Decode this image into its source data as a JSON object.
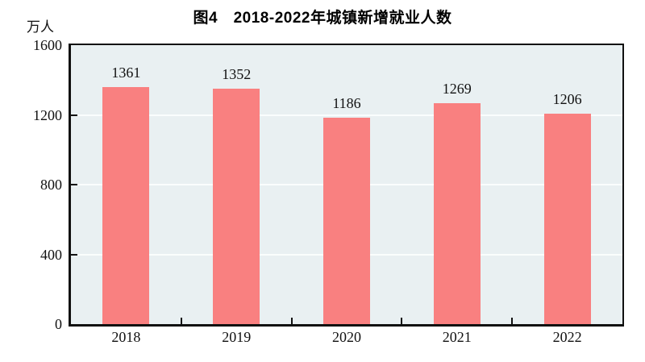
{
  "title": "图4　2018-2022年城镇新增就业人数",
  "unit_label": "万人",
  "colors": {
    "bar": "#f98080",
    "plot_background": "#e9f0f2",
    "gridline": "#fafdfd",
    "axis": "#111111",
    "text": "#111111",
    "page_background": "#ffffff"
  },
  "chart_data": {
    "type": "bar",
    "title": "图4　2018-2022年城镇新增就业人数",
    "unit_label": "万人",
    "categories": [
      "2018",
      "2019",
      "2020",
      "2021",
      "2022"
    ],
    "values": [
      1361,
      1352,
      1186,
      1269,
      1206
    ],
    "xlabel": "",
    "ylabel": "万人",
    "ylim": [
      0,
      1600
    ],
    "yticks": [
      0,
      400,
      800,
      1200,
      1600
    ],
    "grid": "horizontal",
    "gridline_levels": [
      400,
      800,
      1200
    ],
    "legend": false,
    "value_labels": true,
    "bar_color": "#f98080"
  }
}
